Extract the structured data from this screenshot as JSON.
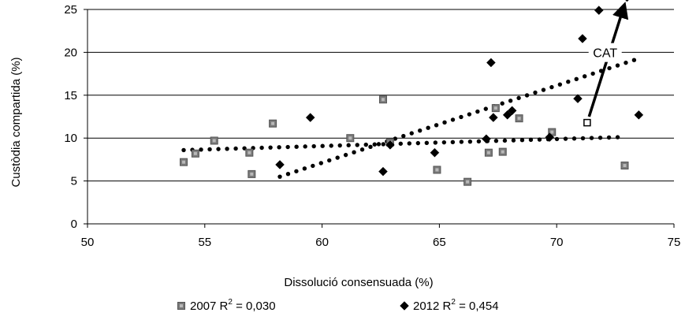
{
  "chart_data": {
    "type": "scatter",
    "xlabel": "Dissolució consensuada (%)",
    "ylabel": "Custòdia compartida (%)",
    "xlim": [
      50,
      75
    ],
    "ylim": [
      0,
      25
    ],
    "x_ticks": [
      "50",
      "55",
      "60",
      "65",
      "70",
      "75"
    ],
    "y_ticks": [
      "0",
      "5",
      "10",
      "15",
      "20",
      "25"
    ],
    "grid": "horizontal",
    "legend_position": "bottom",
    "series": [
      {
        "name": "2007",
        "r2_label": "R",
        "r2_sup": "2",
        "r2_value": "= 0,030",
        "marker": "square",
        "color": "#808080",
        "points": [
          {
            "x": 54.1,
            "y": 7.2
          },
          {
            "x": 54.6,
            "y": 8.2
          },
          {
            "x": 55.4,
            "y": 9.7
          },
          {
            "x": 56.9,
            "y": 8.3
          },
          {
            "x": 57.0,
            "y": 5.8
          },
          {
            "x": 57.9,
            "y": 11.7
          },
          {
            "x": 61.2,
            "y": 10.0
          },
          {
            "x": 62.6,
            "y": 14.5
          },
          {
            "x": 62.9,
            "y": 9.5
          },
          {
            "x": 64.9,
            "y": 6.3
          },
          {
            "x": 66.2,
            "y": 4.9
          },
          {
            "x": 67.1,
            "y": 8.3
          },
          {
            "x": 67.4,
            "y": 13.5
          },
          {
            "x": 67.7,
            "y": 8.4
          },
          {
            "x": 68.4,
            "y": 12.3
          },
          {
            "x": 69.8,
            "y": 10.7
          },
          {
            "x": 72.9,
            "y": 6.8
          }
        ],
        "trend": {
          "x0": 54.1,
          "y0": 8.6,
          "x1": 72.6,
          "y1": 10.1
        }
      },
      {
        "name": "2012",
        "r2_label": "R",
        "r2_sup": "2",
        "r2_value": "= 0,454",
        "marker": "diamond",
        "color": "#000000",
        "points": [
          {
            "x": 58.2,
            "y": 6.9
          },
          {
            "x": 59.5,
            "y": 12.4
          },
          {
            "x": 62.6,
            "y": 6.1
          },
          {
            "x": 62.9,
            "y": 9.2
          },
          {
            "x": 64.8,
            "y": 8.3
          },
          {
            "x": 67.0,
            "y": 9.9
          },
          {
            "x": 67.2,
            "y": 18.8
          },
          {
            "x": 67.3,
            "y": 12.4
          },
          {
            "x": 67.9,
            "y": 12.7
          },
          {
            "x": 68.1,
            "y": 13.2
          },
          {
            "x": 69.7,
            "y": 10.1
          },
          {
            "x": 70.9,
            "y": 14.6
          },
          {
            "x": 71.1,
            "y": 21.6
          },
          {
            "x": 71.8,
            "y": 24.9
          },
          {
            "x": 73.5,
            "y": 12.7
          }
        ],
        "trend": {
          "x0": 58.2,
          "y0": 5.5,
          "x1": 73.3,
          "y1": 19.1
        }
      }
    ],
    "annotation": {
      "label": "CAT",
      "from": {
        "x": 71.3,
        "y": 11.8
      },
      "to": {
        "x": 73.0,
        "y": 26.5
      }
    }
  }
}
